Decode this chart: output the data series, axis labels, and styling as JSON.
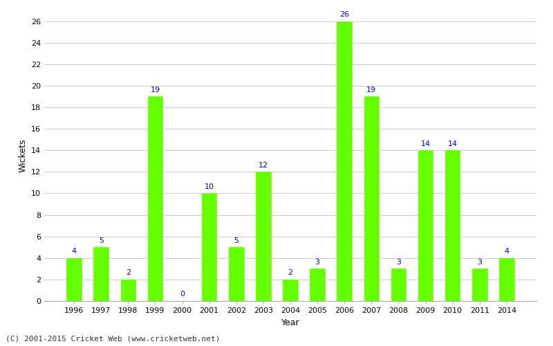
{
  "years": [
    "1996",
    "1997",
    "1998",
    "1999",
    "2000",
    "2001",
    "2002",
    "2003",
    "2004",
    "2005",
    "2006",
    "2007",
    "2008",
    "2009",
    "2010",
    "2011",
    "2014"
  ],
  "wickets": [
    4,
    5,
    2,
    19,
    0,
    10,
    5,
    12,
    2,
    3,
    26,
    19,
    3,
    14,
    14,
    3,
    4
  ],
  "bar_color": "#66ff00",
  "bar_edge_color": "#66ff00",
  "label_color": "#0000cc",
  "ylabel": "Wickets",
  "xlabel": "Year",
  "ylim_max": 27,
  "yticks": [
    0,
    2,
    4,
    6,
    8,
    10,
    12,
    14,
    16,
    18,
    20,
    22,
    24,
    26
  ],
  "grid_color": "#cccccc",
  "background_color": "#ffffff",
  "footer": "(C) 2001-2015 Cricket Web (www.cricketweb.net)",
  "label_fontsize": 8,
  "axis_label_fontsize": 9,
  "tick_fontsize": 8,
  "footer_fontsize": 8,
  "bar_width": 0.55
}
